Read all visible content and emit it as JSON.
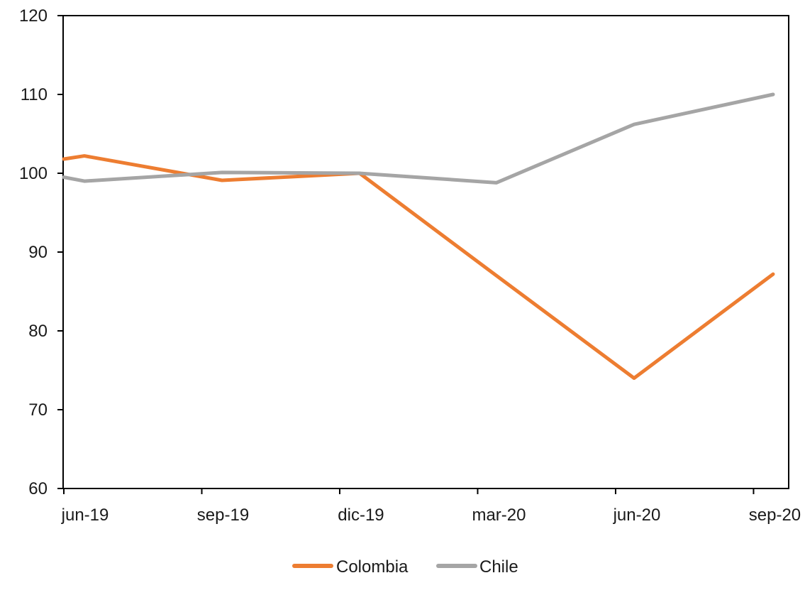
{
  "chart_data": {
    "type": "line",
    "title": "",
    "xlabel": "",
    "ylabel": "",
    "categories": [
      "jun-19",
      "sep-19",
      "dic-19",
      "mar-20",
      "jun-20",
      "sep-20"
    ],
    "x_ticks": [
      "jun-19",
      "sep-19",
      "dic-19",
      "mar-20",
      "jun-20",
      "sep-20"
    ],
    "ylim": [
      60,
      120
    ],
    "y_ticks": [
      60,
      70,
      80,
      90,
      100,
      110,
      120
    ],
    "grid": false,
    "legend_position": "bottom",
    "series": [
      {
        "name": "Colombia",
        "color": "#ed7d31",
        "points": [
          {
            "x": "may-19",
            "y": 101.8
          },
          {
            "x": "jun-19",
            "y": 102.2
          },
          {
            "x": "sep-19",
            "y": 99.1
          },
          {
            "x": "dic-19",
            "y": 100.0
          },
          {
            "x": "mar-20",
            "y": 87.0
          },
          {
            "x": "jun-20",
            "y": 74.0
          },
          {
            "x": "sep-20",
            "y": 87.2
          }
        ]
      },
      {
        "name": "Chile",
        "color": "#a5a5a5",
        "points": [
          {
            "x": "may-19",
            "y": 99.5
          },
          {
            "x": "jun-19",
            "y": 99.0
          },
          {
            "x": "sep-19",
            "y": 100.1
          },
          {
            "x": "dic-19",
            "y": 100.0
          },
          {
            "x": "mar-20",
            "y": 98.8
          },
          {
            "x": "jun-20",
            "y": 106.2
          },
          {
            "x": "sep-20",
            "y": 110.0
          }
        ]
      }
    ]
  }
}
